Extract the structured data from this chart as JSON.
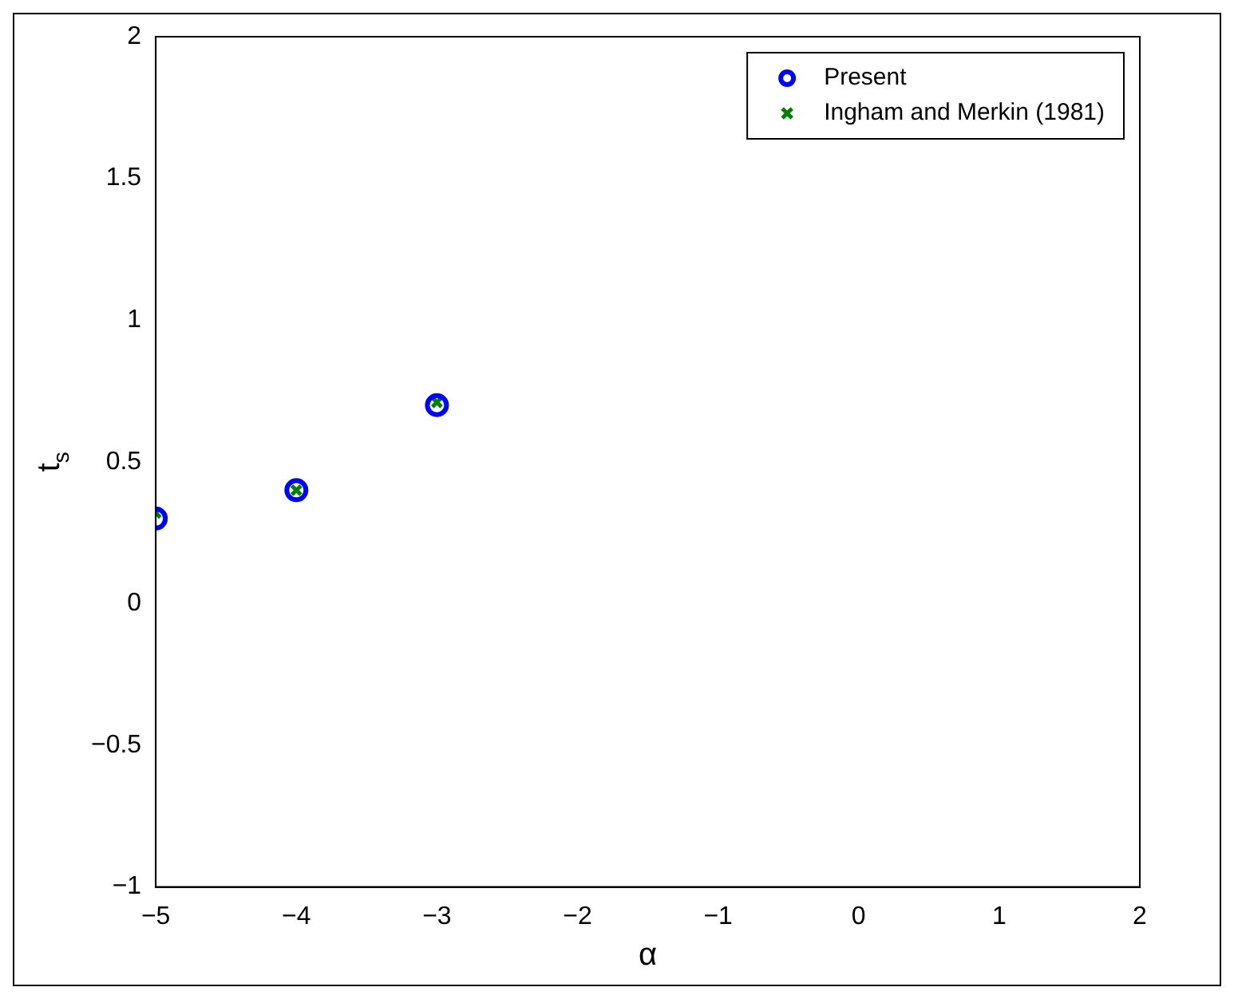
{
  "chart_data": {
    "type": "scatter",
    "xlabel": "α",
    "ylabel": "t$_{s}$",
    "x": [
      -5,
      -4,
      -3
    ],
    "series": [
      {
        "name": "Present",
        "color": "#0000ff",
        "values": [
          0.3,
          0.4,
          0.7
        ],
        "marker": "circle"
      },
      {
        "name": "Ingham and Merkin (1981)",
        "color": "#008000",
        "values": [
          0.32,
          0.4,
          0.71
        ],
        "marker": "cross"
      }
    ],
    "xlim": [
      -5,
      2
    ],
    "xticks": [
      -5,
      -4,
      -3,
      -2,
      -1,
      0,
      1,
      2
    ],
    "ylim": [
      -1,
      2
    ],
    "yticks": [
      -1,
      -0.5,
      0,
      0.5,
      1,
      1.5,
      2
    ],
    "grid": false,
    "legend": "top right"
  }
}
